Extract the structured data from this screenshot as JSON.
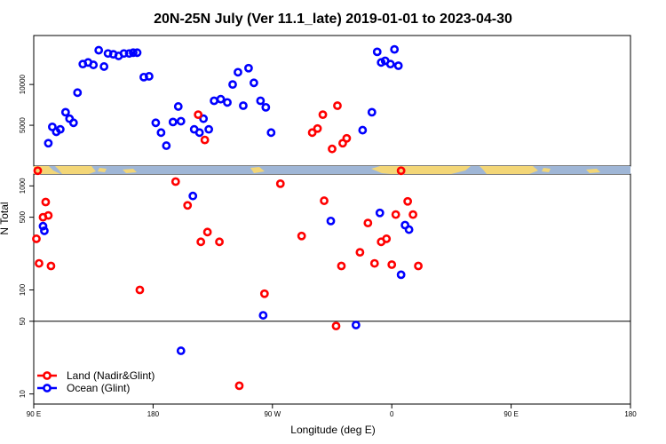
{
  "chart_data": {
    "type": "scatter",
    "title": "20N-25N July (Ver 11.1_late)   2019-01-01 to 2023-04-30",
    "xlabel": "Longitude (deg E)",
    "ylabel": "N Total",
    "x_ticks": [
      "90 E",
      "180",
      "90 W",
      "0",
      "90 E",
      "180"
    ],
    "x_range_deg": [
      90,
      540
    ],
    "top_panel": {
      "ylim": [
        0,
        16000
      ],
      "y_ticks": [
        "5000",
        "10000"
      ],
      "points": [
        [
          101,
          2800
        ],
        [
          104,
          4800
        ],
        [
          107,
          4200
        ],
        [
          110,
          4500
        ],
        [
          114,
          6600
        ],
        [
          117,
          5800
        ],
        [
          120,
          5300
        ],
        [
          123,
          9000
        ],
        [
          127,
          12500
        ],
        [
          131,
          12700
        ],
        [
          135,
          12400
        ],
        [
          139,
          14200
        ],
        [
          143,
          12200
        ],
        [
          146,
          13800
        ],
        [
          150,
          13700
        ],
        [
          154,
          13500
        ],
        [
          158,
          13800
        ],
        [
          162,
          13800
        ],
        [
          165,
          13900
        ],
        [
          168,
          13900
        ],
        [
          173,
          10900
        ],
        [
          177,
          11000
        ],
        [
          182,
          5300
        ],
        [
          186,
          4100
        ],
        [
          190,
          2500
        ],
        [
          195,
          5400
        ],
        [
          199,
          7300
        ],
        [
          201,
          5500
        ],
        [
          211,
          4500
        ],
        [
          215,
          4100
        ],
        [
          218,
          5800
        ],
        [
          222,
          4500
        ],
        [
          226,
          8000
        ],
        [
          231,
          8200
        ],
        [
          236,
          7800
        ],
        [
          240,
          10000
        ],
        [
          244,
          11500
        ],
        [
          248,
          7400
        ],
        [
          252,
          12000
        ],
        [
          256,
          10200
        ],
        [
          261,
          8000
        ],
        [
          265,
          7200
        ],
        [
          269,
          4100
        ],
        [
          338,
          4400
        ],
        [
          345,
          6600
        ],
        [
          349,
          14000
        ],
        [
          352,
          12700
        ],
        [
          355,
          12900
        ],
        [
          359,
          12500
        ],
        [
          362,
          14300
        ],
        [
          365,
          12300
        ]
      ],
      "land_points": [
        [
          214,
          6300
        ],
        [
          219,
          3200
        ],
        [
          300,
          4100
        ],
        [
          304,
          4600
        ],
        [
          308,
          6300
        ],
        [
          315,
          2100
        ],
        [
          319,
          7400
        ],
        [
          323,
          2800
        ],
        [
          326,
          3400
        ]
      ]
    },
    "bottom_panel": {
      "scale": "log",
      "ylim": [
        8,
        1300
      ],
      "y_ticks": [
        "10",
        "50",
        "100",
        "500",
        "1000"
      ],
      "threshold_line": 50,
      "land_points": [
        [
          92,
          310
        ],
        [
          93,
          1400
        ],
        [
          94,
          180
        ],
        [
          97,
          500
        ],
        [
          99,
          700
        ],
        [
          101,
          520
        ],
        [
          103,
          170
        ],
        [
          170,
          100
        ],
        [
          197,
          1100
        ],
        [
          206,
          650
        ],
        [
          216,
          290
        ],
        [
          221,
          360
        ],
        [
          230,
          290
        ],
        [
          245,
          12
        ],
        [
          264,
          92
        ],
        [
          276,
          1050
        ],
        [
          292,
          330
        ],
        [
          309,
          720
        ],
        [
          318,
          45
        ],
        [
          322,
          170
        ],
        [
          336,
          230
        ],
        [
          342,
          440
        ],
        [
          347,
          180
        ],
        [
          352,
          290
        ],
        [
          356,
          310
        ],
        [
          360,
          175
        ],
        [
          363,
          530
        ],
        [
          367,
          1400
        ],
        [
          372,
          710
        ],
        [
          376,
          530
        ],
        [
          380,
          170
        ]
      ],
      "ocean_points": [
        [
          97,
          410
        ],
        [
          98,
          370
        ],
        [
          201,
          26
        ],
        [
          210,
          800
        ],
        [
          263,
          57
        ],
        [
          314,
          460
        ],
        [
          333,
          46
        ],
        [
          351,
          550
        ],
        [
          367,
          140
        ],
        [
          370,
          420
        ],
        [
          373,
          380
        ]
      ]
    },
    "legend": {
      "placement": "bottom-left",
      "entries": [
        {
          "label": "Land (Nadir&Glint)",
          "color": "#ff0000"
        },
        {
          "label": "Ocean (Glint)",
          "color": "#0000ff"
        }
      ]
    },
    "colors": {
      "land": "#ff0000",
      "ocean": "#0000ff",
      "map_ocean": "#9fb6d6",
      "map_land": "#f3d677"
    }
  }
}
